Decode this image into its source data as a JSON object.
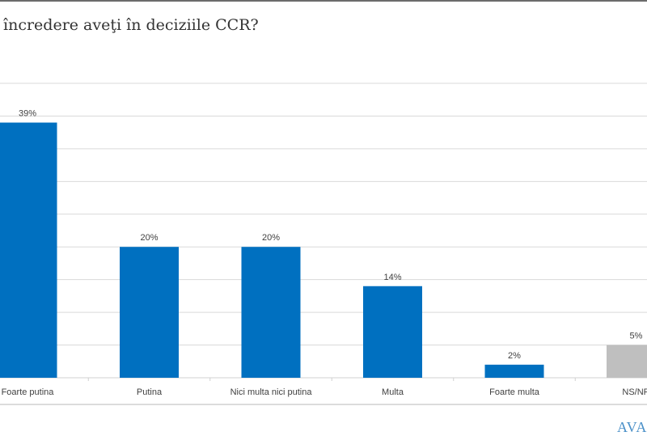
{
  "chart_data": {
    "type": "bar",
    "title": "încredere aveţi în deciziile CCR?",
    "categories": [
      "Foarte putina",
      "Putina",
      "Nici multa nici putina",
      "Multa",
      "Foarte multa",
      "NS/NR"
    ],
    "values": [
      39,
      20,
      20,
      14,
      2,
      5
    ],
    "data_labels": [
      "39%",
      "20%",
      "20%",
      "14%",
      "2%",
      "5%"
    ],
    "ylim": [
      0,
      45
    ],
    "grid": true,
    "colors": {
      "main": "#0070c0",
      "ns_nr": "#bfbfbf"
    },
    "xlabel": "",
    "ylabel": ""
  },
  "logo": "AVAN"
}
